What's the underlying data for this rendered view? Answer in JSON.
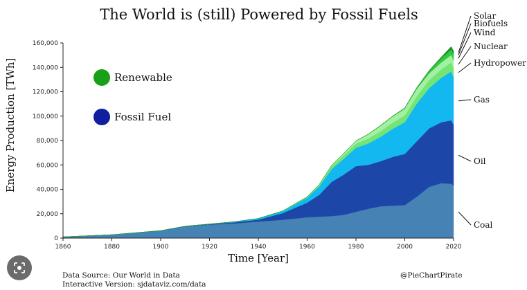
{
  "chart_data": {
    "type": "area",
    "stacked": true,
    "title": "The World is (still) Powered by Fossil Fuels",
    "xlabel": "Time [Year]",
    "ylabel": "Energy Production [TWh]",
    "xlim": [
      1860,
      2020
    ],
    "ylim": [
      0,
      160000
    ],
    "x_ticks": [
      "1860",
      "1880",
      "1900",
      "1920",
      "1940",
      "1960",
      "1980",
      "2000",
      "2020"
    ],
    "y_ticks": [
      "0",
      "20,000",
      "40,000",
      "60,000",
      "80,000",
      "100,000",
      "120,000",
      "140,000",
      "160,000"
    ],
    "x": [
      1860,
      1880,
      1900,
      1910,
      1920,
      1930,
      1940,
      1950,
      1960,
      1965,
      1970,
      1975,
      1980,
      1985,
      1990,
      1995,
      2000,
      2005,
      2010,
      2015,
      2019,
      2020
    ],
    "series": [
      {
        "name": "Coal",
        "group": "Fossil Fuel",
        "color": "#4682b4",
        "values": [
          1000,
          2800,
          6000,
          9500,
          11000,
          12000,
          13500,
          15000,
          17000,
          17500,
          18000,
          19000,
          21500,
          24000,
          26000,
          26500,
          27000,
          34000,
          42000,
          45000,
          44500,
          43000
        ]
      },
      {
        "name": "Oil",
        "group": "Fossil Fuel",
        "color": "#1c47a8",
        "values": [
          0,
          0,
          50,
          150,
          400,
          900,
          1600,
          5500,
          12000,
          18000,
          28000,
          33000,
          37500,
          36000,
          37000,
          40000,
          42000,
          45500,
          48000,
          50000,
          52000,
          50000
        ]
      },
      {
        "name": "Gas",
        "group": "Fossil Fuel",
        "color": "#14b8f0",
        "values": [
          0,
          0,
          50,
          100,
          200,
          500,
          1000,
          1500,
          4000,
          7000,
          10500,
          13000,
          15000,
          17500,
          20000,
          23000,
          26000,
          31000,
          33000,
          36500,
          40000,
          39000
        ]
      },
      {
        "name": "Hydropower",
        "group": "Renewable",
        "color": "#74e474",
        "values": [
          0,
          0,
          0,
          0,
          0,
          0,
          0,
          300,
          700,
          1200,
          2500,
          3000,
          3500,
          4000,
          4500,
          5000,
          5500,
          6000,
          6500,
          7000,
          7500,
          7500
        ]
      },
      {
        "name": "Nuclear",
        "group": "Renewable",
        "color": "#a3f0a3",
        "values": [
          0,
          0,
          0,
          0,
          0,
          0,
          0,
          0,
          100,
          300,
          600,
          1500,
          2200,
          3500,
          4500,
          5000,
          5500,
          6000,
          5500,
          5500,
          6000,
          5800
        ]
      },
      {
        "name": "Wind",
        "group": "Renewable",
        "color": "#2ecc40",
        "values": [
          0,
          0,
          0,
          0,
          0,
          0,
          0,
          0,
          0,
          0,
          0,
          0,
          0,
          0,
          100,
          200,
          300,
          500,
          1200,
          2500,
          3500,
          4000
        ]
      },
      {
        "name": "Biofuels",
        "group": "Renewable",
        "color": "#3ab53a",
        "values": [
          0,
          0,
          0,
          0,
          0,
          0,
          0,
          0,
          0,
          0,
          0,
          0,
          100,
          150,
          200,
          300,
          400,
          600,
          1100,
          1300,
          1500,
          1500
        ]
      },
      {
        "name": "Solar",
        "group": "Renewable",
        "color": "#0a8f24",
        "values": [
          0,
          0,
          0,
          0,
          0,
          0,
          0,
          0,
          0,
          0,
          0,
          0,
          0,
          0,
          0,
          0,
          50,
          100,
          300,
          800,
          2000,
          2500
        ]
      }
    ],
    "legend": [
      {
        "label": "Renewable",
        "color": "#18a018"
      },
      {
        "label": "Fossil Fuel",
        "color": "#0f1fa0"
      }
    ],
    "grid": false,
    "legend_position": "left"
  },
  "footer": {
    "source": "Data Source: Our World in Data",
    "interactive": "Interactive Version: sjdataviz.com/data",
    "credit": "@PieChartPirate"
  },
  "overlay": {
    "lens_icon": "lens-search-icon"
  }
}
